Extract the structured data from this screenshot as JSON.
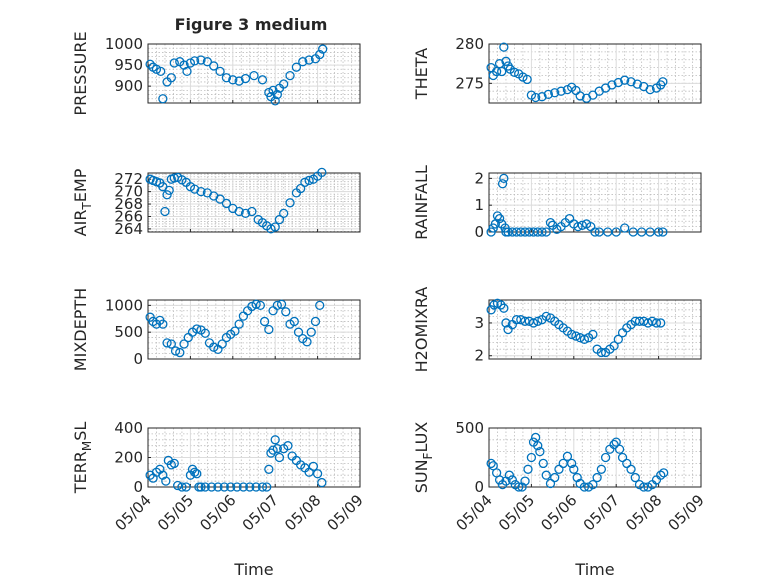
{
  "title": "Figure 3 medium",
  "colors": {
    "marker": "#0072BD",
    "axis": "#262626",
    "grid": "#dcdcdc"
  },
  "chart_data": [
    {
      "type": "scatter",
      "ylabel": "PRESSURE",
      "ylim": [
        860,
        1000
      ],
      "yticks": [
        900,
        950,
        1000
      ],
      "ytick_labels": [
        "900",
        "950",
        "1000"
      ],
      "xlim": [
        0,
        5
      ],
      "xtick_labels": [],
      "xlabel": "",
      "grid": true,
      "x": [
        0.05,
        0.12,
        0.2,
        0.3,
        0.35,
        0.45,
        0.55,
        0.62,
        0.75,
        0.85,
        0.92,
        1.0,
        1.1,
        1.25,
        1.4,
        1.55,
        1.7,
        1.85,
        2.0,
        2.15,
        2.3,
        2.5,
        2.7,
        2.85,
        2.9,
        2.95,
        3.0,
        3.05,
        3.1,
        3.2,
        3.35,
        3.5,
        3.65,
        3.8,
        3.95,
        4.05,
        4.12
      ],
      "y": [
        952,
        945,
        940,
        935,
        870,
        910,
        920,
        955,
        958,
        950,
        935,
        955,
        960,
        962,
        958,
        948,
        935,
        920,
        915,
        912,
        918,
        925,
        915,
        885,
        875,
        890,
        865,
        880,
        895,
        905,
        925,
        945,
        958,
        962,
        965,
        975,
        988
      ]
    },
    {
      "type": "scatter",
      "ylabel": "THETA",
      "ylim": [
        272.5,
        280
      ],
      "yticks": [
        275,
        280
      ],
      "ytick_labels": [
        "275",
        "280"
      ],
      "xlim": [
        0,
        5
      ],
      "xtick_labels": [],
      "xlabel": "",
      "grid": true,
      "x": [
        0.05,
        0.1,
        0.18,
        0.25,
        0.3,
        0.35,
        0.4,
        0.45,
        0.5,
        0.6,
        0.7,
        0.8,
        0.9,
        1.0,
        1.1,
        1.25,
        1.4,
        1.55,
        1.7,
        1.85,
        1.95,
        2.05,
        2.15,
        2.3,
        2.45,
        2.6,
        2.75,
        2.9,
        3.05,
        3.2,
        3.35,
        3.5,
        3.65,
        3.8,
        3.95,
        4.05,
        4.1
      ],
      "y": [
        277,
        276,
        276.5,
        277.5,
        276.5,
        279.6,
        277.8,
        277.2,
        276.8,
        276.4,
        276.2,
        275.8,
        275.5,
        273.5,
        273.2,
        273.3,
        273.6,
        273.8,
        274,
        274.2,
        274.5,
        274.1,
        273.4,
        273.1,
        273.5,
        274,
        274.4,
        274.8,
        275.1,
        275.4,
        275.2,
        274.9,
        274.6,
        274.2,
        274.4,
        274.8,
        275.2
      ]
    },
    {
      "type": "scatter",
      "ylabel": "AIR_TEMP",
      "ylim": [
        263.5,
        273
      ],
      "yticks": [
        264,
        266,
        268,
        270,
        272
      ],
      "ytick_labels": [
        "264",
        "266",
        "268",
        "270",
        "272"
      ],
      "xlim": [
        0,
        5
      ],
      "xtick_labels": [],
      "xlabel": "",
      "grid": true,
      "x": [
        0.05,
        0.12,
        0.2,
        0.28,
        0.35,
        0.4,
        0.45,
        0.5,
        0.55,
        0.62,
        0.7,
        0.8,
        0.9,
        1.0,
        1.1,
        1.25,
        1.4,
        1.55,
        1.7,
        1.85,
        2.0,
        2.15,
        2.3,
        2.45,
        2.6,
        2.7,
        2.8,
        2.9,
        3.0,
        3.1,
        3.2,
        3.35,
        3.5,
        3.6,
        3.7,
        3.8,
        3.9,
        4.0,
        4.1
      ],
      "y": [
        272,
        271.8,
        271.6,
        271.4,
        270.8,
        266.8,
        269.5,
        270.2,
        272,
        272.2,
        272.3,
        271.9,
        271.5,
        270.8,
        270.4,
        270.0,
        269.8,
        269.3,
        268.8,
        268.1,
        267.3,
        266.8,
        266.5,
        266.8,
        265.5,
        265.0,
        264.5,
        264.0,
        264.3,
        265.5,
        266.5,
        268.2,
        269.8,
        270.5,
        271.5,
        271.8,
        272.0,
        272.5,
        273.1
      ]
    },
    {
      "type": "scatter",
      "ylabel": "RAINFALL",
      "ylim": [
        0,
        2.2
      ],
      "yticks": [
        0,
        1,
        2
      ],
      "ytick_labels": [
        "0",
        "1",
        "2"
      ],
      "xlim": [
        0,
        5
      ],
      "xtick_labels": [],
      "xlabel": "",
      "grid": true,
      "x": [
        0.05,
        0.1,
        0.15,
        0.2,
        0.25,
        0.3,
        0.32,
        0.35,
        0.38,
        0.4,
        0.45,
        0.55,
        0.65,
        0.75,
        0.85,
        0.95,
        1.05,
        1.15,
        1.25,
        1.35,
        1.45,
        1.5,
        1.6,
        1.7,
        1.8,
        1.9,
        2.0,
        2.1,
        2.2,
        2.3,
        2.4,
        2.5,
        2.6,
        2.8,
        3.0,
        3.2,
        3.4,
        3.6,
        3.8,
        4.0,
        4.1
      ],
      "y": [
        0,
        0.15,
        0.3,
        0.6,
        0.5,
        0.3,
        1.8,
        2.0,
        0.15,
        0,
        0,
        0,
        0,
        0,
        0,
        0,
        0,
        0,
        0,
        0,
        0.35,
        0.25,
        0.1,
        0.2,
        0.35,
        0.5,
        0.3,
        0.2,
        0.25,
        0.3,
        0.2,
        0,
        0,
        0,
        0,
        0.15,
        0,
        0,
        0,
        0,
        0
      ]
    },
    {
      "type": "scatter",
      "ylabel": "MIXDEPTH",
      "ylim": [
        0,
        1100
      ],
      "yticks": [
        0,
        500,
        1000
      ],
      "ytick_labels": [
        "0",
        "500",
        "1000"
      ],
      "xlim": [
        0,
        5
      ],
      "xtick_labels": [],
      "xlabel": "",
      "grid": true,
      "x": [
        0.05,
        0.12,
        0.2,
        0.28,
        0.35,
        0.45,
        0.55,
        0.65,
        0.75,
        0.85,
        0.95,
        1.05,
        1.15,
        1.25,
        1.35,
        1.45,
        1.55,
        1.65,
        1.75,
        1.85,
        1.95,
        2.05,
        2.15,
        2.25,
        2.35,
        2.45,
        2.55,
        2.65,
        2.75,
        2.85,
        2.95,
        3.05,
        3.15,
        3.25,
        3.35,
        3.45,
        3.55,
        3.65,
        3.75,
        3.85,
        3.95,
        4.05
      ],
      "y": [
        780,
        700,
        650,
        720,
        650,
        300,
        280,
        150,
        120,
        280,
        400,
        500,
        560,
        540,
        480,
        300,
        220,
        180,
        280,
        400,
        460,
        520,
        650,
        800,
        900,
        980,
        1020,
        1000,
        700,
        550,
        900,
        1000,
        1020,
        880,
        650,
        700,
        500,
        380,
        320,
        500,
        700,
        1000
      ]
    },
    {
      "type": "scatter",
      "ylabel": "H2OMIXRA",
      "ylim": [
        1.9,
        3.7
      ],
      "yticks": [
        2,
        3
      ],
      "ytick_labels": [
        "2",
        "3"
      ],
      "xlim": [
        0,
        5
      ],
      "xtick_labels": [],
      "xlabel": "",
      "grid": true,
      "x": [
        0.05,
        0.12,
        0.2,
        0.28,
        0.35,
        0.4,
        0.45,
        0.55,
        0.65,
        0.75,
        0.85,
        0.95,
        1.05,
        1.15,
        1.25,
        1.35,
        1.45,
        1.55,
        1.65,
        1.75,
        1.85,
        1.95,
        2.05,
        2.15,
        2.25,
        2.35,
        2.45,
        2.55,
        2.65,
        2.75,
        2.85,
        2.95,
        3.05,
        3.15,
        3.25,
        3.35,
        3.45,
        3.55,
        3.65,
        3.75,
        3.85,
        3.95,
        4.05
      ],
      "y": [
        3.4,
        3.55,
        3.6,
        3.55,
        3.45,
        3.0,
        2.8,
        2.95,
        3.1,
        3.1,
        3.05,
        3.05,
        3.0,
        3.05,
        3.1,
        3.2,
        3.15,
        3.05,
        2.95,
        2.85,
        2.75,
        2.65,
        2.6,
        2.55,
        2.5,
        2.55,
        2.65,
        2.2,
        2.1,
        2.1,
        2.2,
        2.3,
        2.5,
        2.7,
        2.85,
        2.95,
        3.05,
        3.05,
        3.05,
        3.0,
        3.05,
        3.0,
        3.0
      ]
    },
    {
      "type": "scatter",
      "ylabel": "TERR_MSL",
      "ylim": [
        0,
        400
      ],
      "yticks": [
        0,
        200,
        400
      ],
      "ytick_labels": [
        "0",
        "200",
        "400"
      ],
      "xlim": [
        0,
        5
      ],
      "xtick_labels": [
        "05/04",
        "05/05",
        "05/06",
        "05/07",
        "05/08",
        "05/09"
      ],
      "xlabel": "Time",
      "grid": true,
      "x": [
        0.05,
        0.12,
        0.2,
        0.28,
        0.35,
        0.42,
        0.48,
        0.55,
        0.62,
        0.7,
        0.8,
        0.9,
        1.0,
        1.05,
        1.1,
        1.15,
        1.2,
        1.25,
        1.35,
        1.5,
        1.65,
        1.8,
        1.95,
        2.1,
        2.25,
        2.4,
        2.55,
        2.7,
        2.8,
        2.85,
        2.9,
        2.95,
        3.0,
        3.05,
        3.1,
        3.2,
        3.3,
        3.4,
        3.5,
        3.6,
        3.7,
        3.8,
        3.9,
        4.0,
        4.1
      ],
      "y": [
        80,
        60,
        100,
        120,
        80,
        40,
        180,
        150,
        160,
        10,
        0,
        0,
        80,
        120,
        100,
        90,
        0,
        0,
        0,
        0,
        0,
        0,
        0,
        0,
        0,
        0,
        0,
        0,
        0,
        120,
        230,
        250,
        320,
        260,
        200,
        260,
        280,
        210,
        180,
        150,
        130,
        100,
        140,
        90,
        30
      ]
    },
    {
      "type": "scatter",
      "ylabel": "SUN_FLUX",
      "ylim": [
        0,
        500
      ],
      "yticks": [
        0,
        500
      ],
      "ytick_labels": [
        "0",
        "500"
      ],
      "xlim": [
        0,
        5
      ],
      "xtick_labels": [
        "05/04",
        "05/05",
        "05/06",
        "05/07",
        "05/08",
        "05/09"
      ],
      "xlabel": "Time",
      "grid": true,
      "x": [
        0.05,
        0.1,
        0.18,
        0.25,
        0.32,
        0.4,
        0.48,
        0.55,
        0.62,
        0.7,
        0.78,
        0.85,
        0.92,
        1.0,
        1.05,
        1.1,
        1.15,
        1.2,
        1.28,
        1.35,
        1.45,
        1.55,
        1.65,
        1.75,
        1.85,
        1.95,
        2.0,
        2.08,
        2.15,
        2.25,
        2.35,
        2.45,
        2.55,
        2.65,
        2.75,
        2.85,
        2.95,
        3.0,
        3.08,
        3.15,
        3.25,
        3.35,
        3.45,
        3.55,
        3.65,
        3.75,
        3.85,
        3.95,
        4.05,
        4.12
      ],
      "y": [
        200,
        180,
        120,
        60,
        20,
        50,
        100,
        60,
        20,
        0,
        0,
        50,
        150,
        250,
        380,
        420,
        350,
        300,
        200,
        100,
        30,
        80,
        150,
        200,
        260,
        200,
        150,
        80,
        30,
        0,
        0,
        20,
        80,
        150,
        250,
        320,
        360,
        380,
        320,
        250,
        200,
        150,
        80,
        20,
        0,
        0,
        20,
        60,
        100,
        120
      ]
    }
  ]
}
